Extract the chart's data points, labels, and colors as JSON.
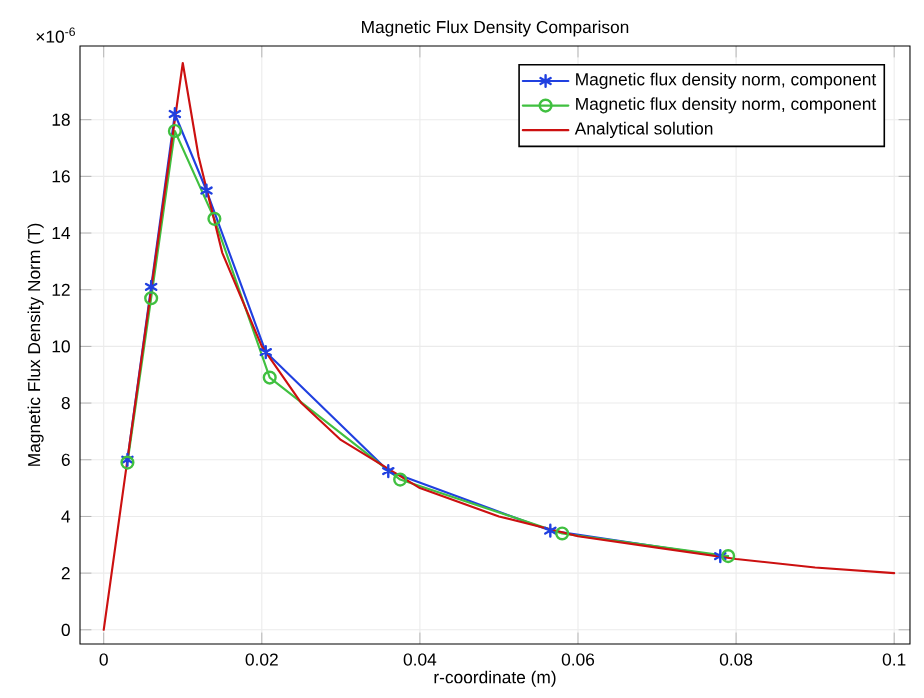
{
  "chart_data": {
    "type": "line",
    "title": "Magnetic Flux Density Comparison",
    "xlabel": "r-coordinate (m)",
    "ylabel": "Magnetic Flux Density Norm (T)",
    "annotations": [
      "×10$^{-6}$"
    ],
    "xlim": [
      -0.003,
      0.102
    ],
    "ylim": [
      -0.5,
      20.6
    ],
    "xticks": [
      0,
      0.02,
      0.04,
      0.06,
      0.08,
      0.1
    ],
    "yticks": [
      0,
      2,
      4,
      6,
      8,
      10,
      12,
      14,
      16,
      18
    ],
    "grid": true,
    "legend": "top right",
    "series": [
      {
        "name": "Magnetic flux density norm, component",
        "color": "#2040e0",
        "marker": "cross",
        "x": [
          0.003,
          0.006,
          0.009,
          0.013,
          0.0205,
          0.036,
          0.0565,
          0.078
        ],
        "values": [
          6.0,
          12.1,
          18.2,
          15.5,
          9.8,
          5.6,
          3.5,
          2.6
        ]
      },
      {
        "name": "Magnetic flux density norm, component",
        "color": "#40c040",
        "marker": "circle",
        "x": [
          0.003,
          0.006,
          0.009,
          0.014,
          0.021,
          0.0375,
          0.058,
          0.079
        ],
        "values": [
          5.9,
          11.7,
          17.6,
          14.5,
          8.9,
          5.3,
          3.4,
          2.6
        ]
      },
      {
        "name": "Analytical solution",
        "color": "#cc1010",
        "marker": "none",
        "x": [
          0,
          0.01,
          0.012,
          0.015,
          0.02,
          0.025,
          0.03,
          0.04,
          0.05,
          0.06,
          0.07,
          0.08,
          0.09,
          0.1
        ],
        "values": [
          0,
          20.0,
          16.7,
          13.3,
          10.0,
          8.0,
          6.7,
          5.0,
          4.0,
          3.3,
          2.9,
          2.5,
          2.2,
          2.0
        ]
      }
    ]
  }
}
